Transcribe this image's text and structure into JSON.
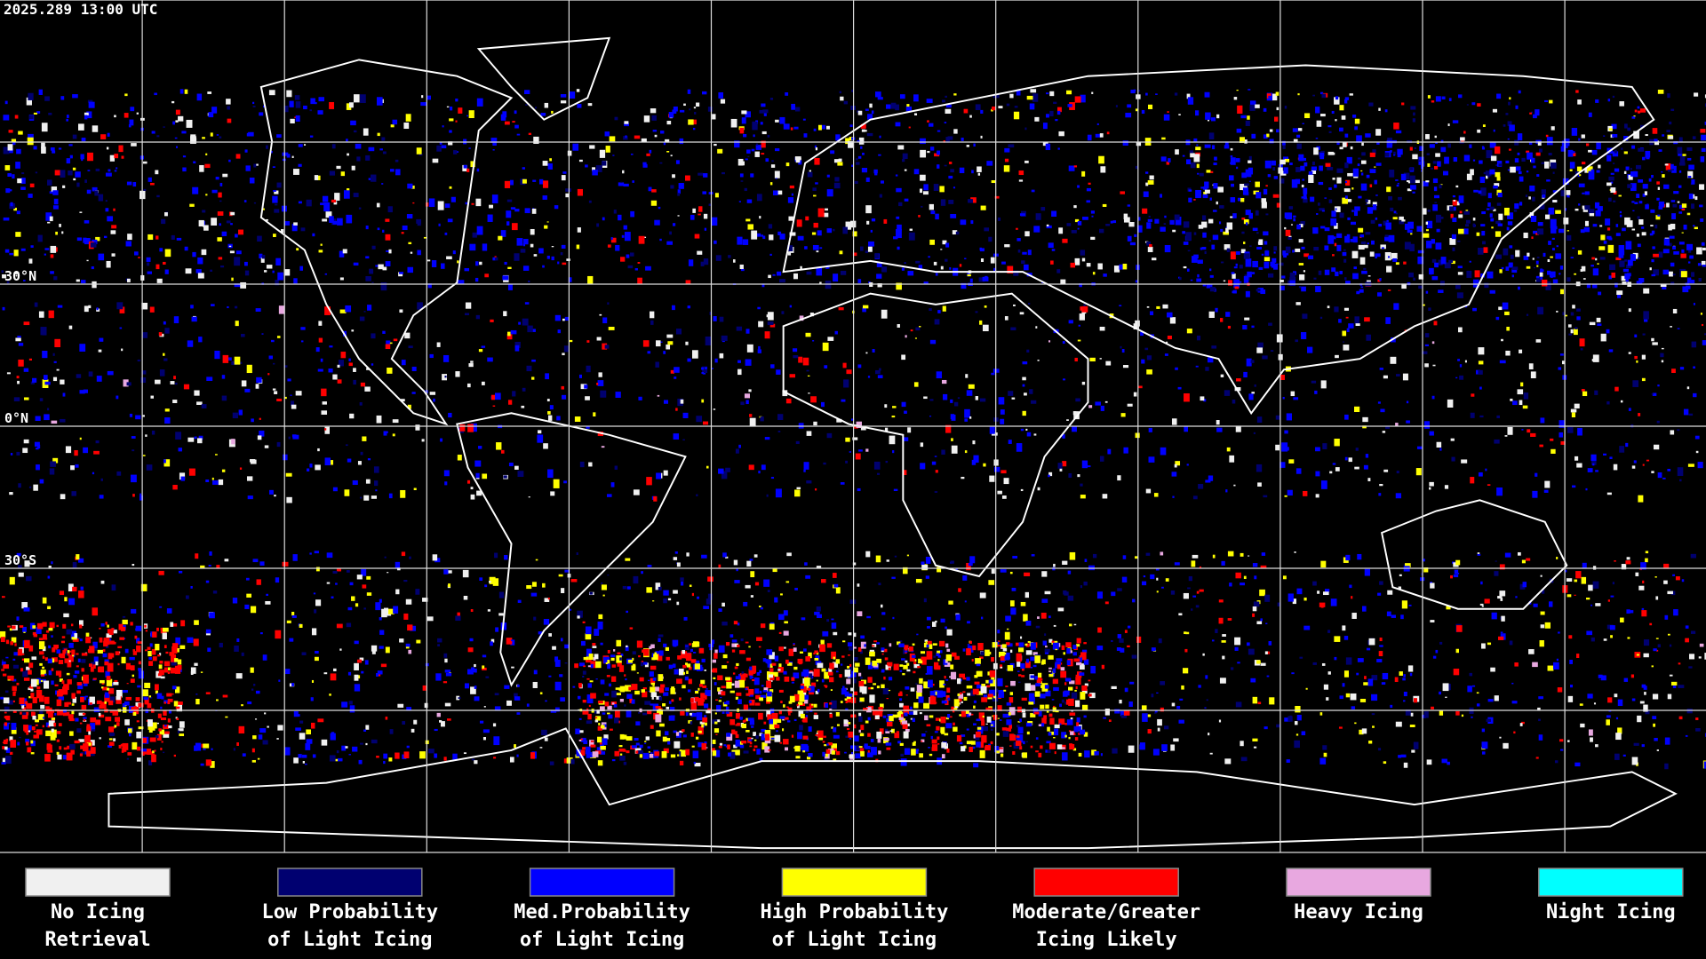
{
  "timestamp": "2025.289 13:00 UTC",
  "latitude_labels": [
    "30°N",
    "0°N",
    "30°S"
  ],
  "legend": [
    {
      "lines": [
        "No Icing",
        "Retrieval"
      ],
      "color": "#f0f0f0"
    },
    {
      "lines": [
        "Low Probability",
        "of Light Icing"
      ],
      "color": "#000070"
    },
    {
      "lines": [
        "Med.Probability",
        "of Light Icing"
      ],
      "color": "#0000ff"
    },
    {
      "lines": [
        "High Probability",
        "of Light Icing"
      ],
      "color": "#ffff00"
    },
    {
      "lines": [
        "Moderate/Greater",
        "Icing Likely"
      ],
      "color": "#ff0000"
    },
    {
      "lines": [
        "Heavy Icing"
      ],
      "color": "#e8a8e0"
    },
    {
      "lines": [
        "Night Icing"
      ],
      "color": "#00ffff"
    }
  ]
}
